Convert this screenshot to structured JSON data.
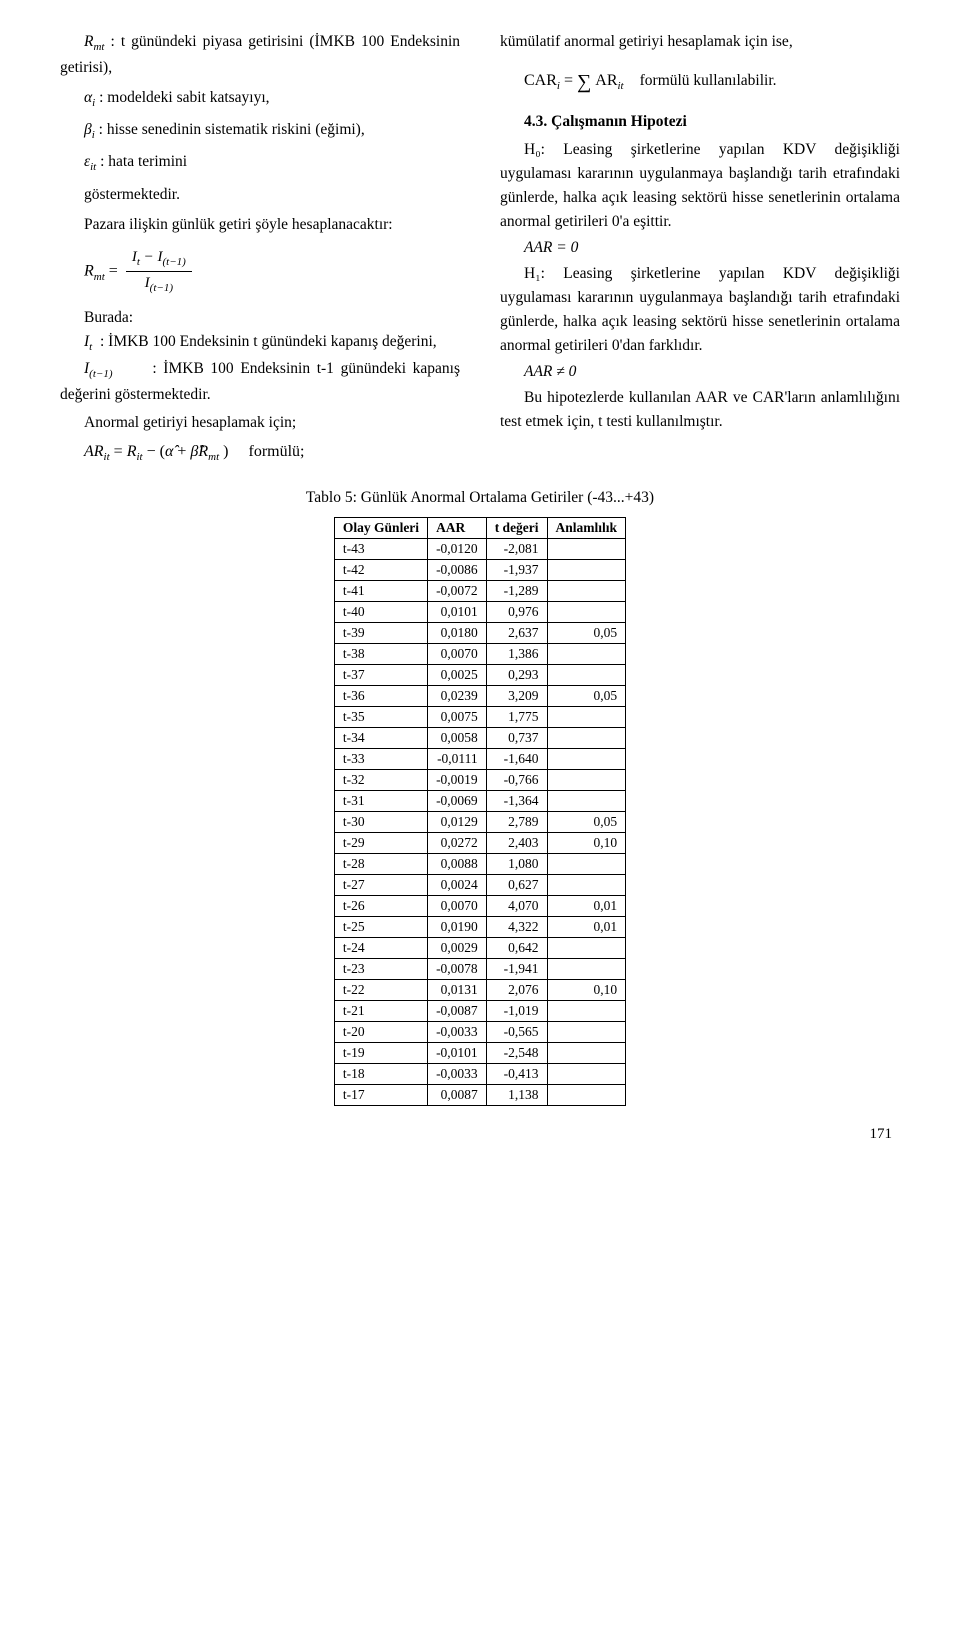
{
  "left": {
    "def_Rmt": "Rmt : t günündeki piyasa getirisini (İMKB 100 Endeksinin getirisi),",
    "def_alpha": "αi : modeldeki sabit katsayıyı,",
    "def_beta": "βi : hisse senedinin sistematik riskini (eğimi),",
    "def_eps": "εit : hata terimini",
    "def_goster": "göstermektedir.",
    "pazara": "Pazara ilişkin günlük getiri şöyle hesaplanacaktır:",
    "rmt_lhs": "R",
    "rmt_sub": "mt",
    "rmt_eq": "=",
    "num": "It − I(t−1)",
    "den": "I(t−1)",
    "burada": "Burada:",
    "it_def": "It  : İMKB 100 Endeksinin t günündeki kapanış değerini,",
    "it1_def": "I(t−1)       : İMKB 100 Endeksinin t-1 günündeki kapanış değerini göstermektedir.",
    "anormal": "Anormal getiriyi hesaplamak için;",
    "ar_formula": "ARit = Rit − (α̂ + β̂Rmt )      formülü;"
  },
  "right": {
    "kumul": "kümülatif anormal getiriyi hesaplamak için ise,",
    "car_formula_pre": "CAR",
    "car_sub_i": "i",
    "car_eq": " = ",
    "car_sigma": "∑",
    "car_ar": "AR",
    "car_sub_it": "it",
    "car_tail": "formülü kullanılabilir.",
    "h_title": "4.3.     Çalışmanın Hipotezi",
    "h0": "H₀: Leasing şirketlerine yapılan KDV değişikliği uygulaması kararının uygulanmaya başlandığı tarih etrafındaki günlerde, halka açık leasing sektörü hisse senetlerinin ortalama anormal getirileri 0'a eşittir.",
    "aar0": "AAR = 0",
    "h1": "H₁: Leasing şirketlerine yapılan KDV değişikliği uygulaması kararının uygulanmaya başlandığı tarih etrafındaki günlerde, halka açık leasing sektörü hisse senetlerinin ortalama anormal getirileri 0'dan farklıdır.",
    "aar_ne": "AAR ≠ 0",
    "bu_hip": "Bu hipotezlerde kullanılan AAR ve CAR'ların anlamlılığını test etmek için, t testi kullanılmıştır."
  },
  "table_caption": "Tablo 5: Günlük Anormal Ortalama Getiriler (-43...+43)",
  "table_headers": [
    "Olay Günleri",
    "AAR",
    "t değeri",
    "Anlamlılık"
  ],
  "table_rows": [
    [
      "t-43",
      "-0,0120",
      "-2,081",
      ""
    ],
    [
      "t-42",
      "-0,0086",
      "-1,937",
      ""
    ],
    [
      "t-41",
      "-0,0072",
      "-1,289",
      ""
    ],
    [
      "t-40",
      "0,0101",
      "0,976",
      ""
    ],
    [
      "t-39",
      "0,0180",
      "2,637",
      "0,05"
    ],
    [
      "t-38",
      "0,0070",
      "1,386",
      ""
    ],
    [
      "t-37",
      "0,0025",
      "0,293",
      ""
    ],
    [
      "t-36",
      "0,0239",
      "3,209",
      "0,05"
    ],
    [
      "t-35",
      "0,0075",
      "1,775",
      ""
    ],
    [
      "t-34",
      "0,0058",
      "0,737",
      ""
    ],
    [
      "t-33",
      "-0,0111",
      "-1,640",
      ""
    ],
    [
      "t-32",
      "-0,0019",
      "-0,766",
      ""
    ],
    [
      "t-31",
      "-0,0069",
      "-1,364",
      ""
    ],
    [
      "t-30",
      "0,0129",
      "2,789",
      "0,05"
    ],
    [
      "t-29",
      "0,0272",
      "2,403",
      "0,10"
    ],
    [
      "t-28",
      "0,0088",
      "1,080",
      ""
    ],
    [
      "t-27",
      "0,0024",
      "0,627",
      ""
    ],
    [
      "t-26",
      "0,0070",
      "4,070",
      "0,01"
    ],
    [
      "t-25",
      "0,0190",
      "4,322",
      "0,01"
    ],
    [
      "t-24",
      "0,0029",
      "0,642",
      ""
    ],
    [
      "t-23",
      "-0,0078",
      "-1,941",
      ""
    ],
    [
      "t-22",
      "0,0131",
      "2,076",
      "0,10"
    ],
    [
      "t-21",
      "-0,0087",
      "-1,019",
      ""
    ],
    [
      "t-20",
      "-0,0033",
      "-0,565",
      ""
    ],
    [
      "t-19",
      "-0,0101",
      "-2,548",
      ""
    ],
    [
      "t-18",
      "-0,0033",
      "-0,413",
      ""
    ],
    [
      "t-17",
      "0,0087",
      "1,138",
      ""
    ]
  ],
  "page_number": "171"
}
